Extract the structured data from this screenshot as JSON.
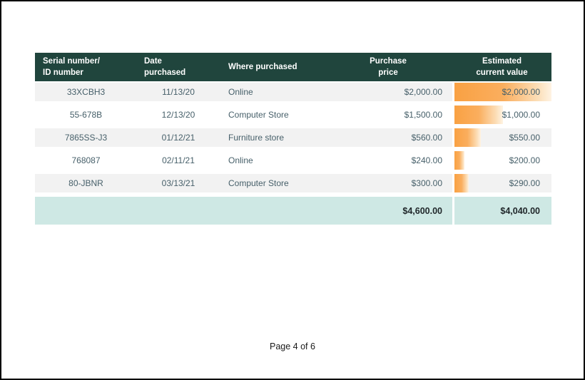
{
  "document": {
    "footer_text": "Page 4 of 6"
  },
  "colors": {
    "header-bg": "#20453D",
    "header-text": "#FFFFFF",
    "row-alt-bg": "#F2F2F2",
    "data-text": "#47606A",
    "totals-bg": "#CEE8E4",
    "totals-text": "#1F2629",
    "bar-start": "#F9A143",
    "bar-end": "#FEF3E3",
    "page-border": "#000000"
  },
  "table": {
    "columns": [
      {
        "line1": "Serial number/",
        "line2": "ID number"
      },
      {
        "line1": "Date",
        "line2": "purchased"
      },
      {
        "line1": "Where purchased",
        "line2": ""
      },
      {
        "line1": "Purchase",
        "line2": "price"
      },
      {
        "line1": "Estimated",
        "line2": "current value"
      }
    ],
    "rows": [
      {
        "serial": "33XCBH3",
        "date": "11/13/20",
        "where": "Online",
        "price": "$2,000.00",
        "value": "$2,000.00",
        "bar_percent": 100
      },
      {
        "serial": "55-678B",
        "date": "12/13/20",
        "where": "Computer Store",
        "price": "$1,500.00",
        "value": "$1,000.00",
        "bar_percent": 50
      },
      {
        "serial": "7865SS-J3",
        "date": "01/12/21",
        "where": "Furniture store",
        "price": "$560.00",
        "value": "$550.00",
        "bar_percent": 27.5
      },
      {
        "serial": "768087",
        "date": "02/11/21",
        "where": "Online",
        "price": "$240.00",
        "value": "$200.00",
        "bar_percent": 10
      },
      {
        "serial": "80-JBNR",
        "date": "03/13/21",
        "where": "Computer Store",
        "price": "$300.00",
        "value": "$290.00",
        "bar_percent": 14.5
      }
    ],
    "totals": {
      "price": "$4,600.00",
      "value": "$4,040.00"
    }
  }
}
